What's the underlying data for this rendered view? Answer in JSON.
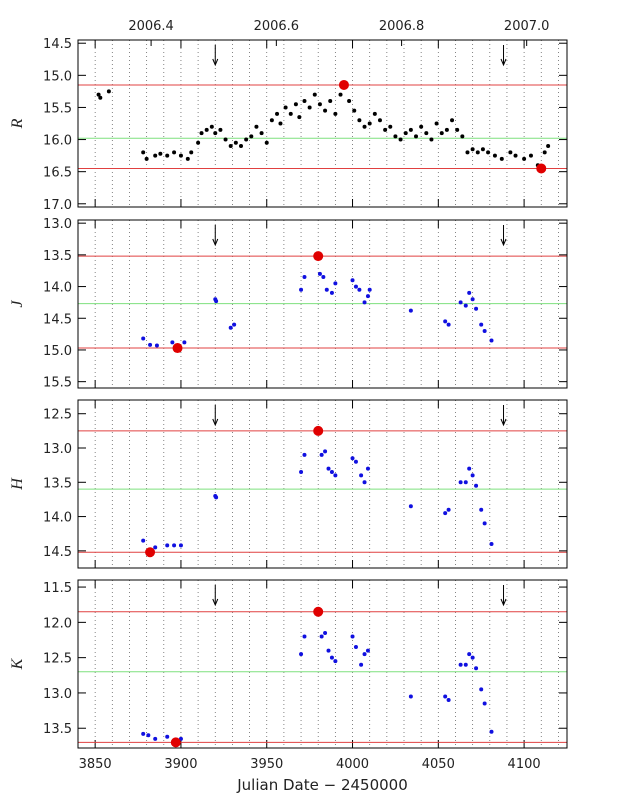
{
  "chart_data": [
    {
      "type": "scatter",
      "ylabel": "R",
      "xlim": [
        3840,
        4125
      ],
      "ylim": [
        14.45,
        17.05
      ],
      "y_inverted": true,
      "x2ticks": [
        {
          "value": 3882.6,
          "label": "2006.4"
        },
        {
          "value": 3955.6,
          "label": "2006.6"
        },
        {
          "value": 4028.6,
          "label": "2006.8"
        },
        {
          "value": 4101.5,
          "label": "2007.0"
        }
      ],
      "yticks": [
        14.5,
        {
          "value": 15,
          "label": "15.0"
        },
        15.5,
        {
          "value": 16,
          "label": "16.0"
        },
        16.5,
        {
          "value": 17,
          "label": "17.0"
        }
      ],
      "arrows_x": [
        3920,
        4088
      ],
      "hlines": [
        {
          "value": 15.15,
          "color": "#e04040"
        },
        {
          "value": 15.98,
          "color": "#7ee07e"
        },
        {
          "value": 16.45,
          "color": "#e04040"
        }
      ],
      "points": {
        "color": "#000000",
        "x": [
          3852,
          3853,
          3858,
          3878,
          3880,
          3885,
          3888,
          3892,
          3896,
          3900,
          3904,
          3906,
          3910,
          3912,
          3915,
          3918,
          3920,
          3923,
          3926,
          3929,
          3932,
          3935,
          3938,
          3941,
          3944,
          3947,
          3950,
          3953,
          3956,
          3958,
          3961,
          3964,
          3967,
          3969,
          3972,
          3975,
          3978,
          3981,
          3984,
          3987,
          3990,
          3993,
          3998,
          4001,
          4004,
          4007,
          4010,
          4013,
          4016,
          4019,
          4022,
          4025,
          4028,
          4031,
          4034,
          4037,
          4040,
          4043,
          4046,
          4049,
          4052,
          4055,
          4058,
          4061,
          4064,
          4067,
          4070,
          4073,
          4076,
          4079,
          4083,
          4087,
          4092,
          4095,
          4100,
          4104,
          4108,
          4112,
          4114
        ],
        "y": [
          15.3,
          15.35,
          15.25,
          16.2,
          16.3,
          16.25,
          16.22,
          16.25,
          16.2,
          16.25,
          16.3,
          16.2,
          16.05,
          15.9,
          15.85,
          15.8,
          15.9,
          15.85,
          16.0,
          16.1,
          16.05,
          16.1,
          16.0,
          15.95,
          15.8,
          15.9,
          16.05,
          15.7,
          15.6,
          15.75,
          15.5,
          15.6,
          15.45,
          15.65,
          15.4,
          15.5,
          15.3,
          15.45,
          15.55,
          15.4,
          15.6,
          15.3,
          15.4,
          15.55,
          15.7,
          15.8,
          15.75,
          15.6,
          15.7,
          15.85,
          15.8,
          15.95,
          16.0,
          15.9,
          15.85,
          15.95,
          15.8,
          15.9,
          16.0,
          15.75,
          15.9,
          15.85,
          15.7,
          15.85,
          15.95,
          16.2,
          16.15,
          16.2,
          16.15,
          16.2,
          16.25,
          16.3,
          16.2,
          16.25,
          16.3,
          16.25,
          16.4,
          16.2,
          16.1
        ]
      },
      "extrema": {
        "color": "#e00000",
        "x": [
          3995,
          4110
        ],
        "y": [
          15.15,
          16.45
        ]
      }
    },
    {
      "type": "scatter",
      "ylabel": "J",
      "xlim": [
        3840,
        4125
      ],
      "ylim": [
        12.95,
        15.6
      ],
      "y_inverted": true,
      "yticks": [
        {
          "value": 13,
          "label": "13.0"
        },
        13.5,
        {
          "value": 14,
          "label": "14.0"
        },
        14.5,
        {
          "value": 15,
          "label": "15.0"
        },
        15.5
      ],
      "arrows_x": [
        3920,
        4088
      ],
      "hlines": [
        {
          "value": 13.52,
          "color": "#e04040"
        },
        {
          "value": 14.27,
          "color": "#7ee07e"
        },
        {
          "value": 14.97,
          "color": "#e04040"
        }
      ],
      "points": {
        "color": "#1010e0",
        "x": [
          3878,
          3882,
          3886,
          3895,
          3902,
          3920,
          3920.5,
          3929,
          3931,
          3970,
          3972,
          3981,
          3983,
          3985,
          3988,
          3990,
          4000,
          4002,
          4004,
          4007,
          4009,
          4010,
          4034,
          4054,
          4056,
          4063,
          4066,
          4068,
          4070,
          4072,
          4075,
          4077,
          4081
        ],
        "y": [
          14.82,
          14.92,
          14.93,
          14.88,
          14.88,
          14.2,
          14.23,
          14.65,
          14.6,
          14.05,
          13.85,
          13.8,
          13.85,
          14.05,
          14.1,
          13.95,
          13.9,
          14.0,
          14.05,
          14.25,
          14.15,
          14.05,
          14.38,
          14.55,
          14.6,
          14.25,
          14.3,
          14.1,
          14.2,
          14.35,
          14.6,
          14.7,
          14.85
        ]
      },
      "extrema": {
        "color": "#e00000",
        "x": [
          3980,
          3898
        ],
        "y": [
          13.52,
          14.97
        ]
      }
    },
    {
      "type": "scatter",
      "ylabel": "H",
      "xlim": [
        3840,
        4125
      ],
      "ylim": [
        12.3,
        14.75
      ],
      "y_inverted": true,
      "yticks": [
        12.5,
        {
          "value": 13,
          "label": "13.0"
        },
        13.5,
        {
          "value": 14,
          "label": "14.0"
        },
        14.5
      ],
      "arrows_x": [
        3920,
        4088
      ],
      "hlines": [
        {
          "value": 12.75,
          "color": "#e04040"
        },
        {
          "value": 13.6,
          "color": "#7ee07e"
        },
        {
          "value": 14.52,
          "color": "#e04040"
        }
      ],
      "points": {
        "color": "#1010e0",
        "x": [
          3878,
          3885,
          3892,
          3896,
          3900,
          3920,
          3920.5,
          3970,
          3972,
          3982,
          3984,
          3986,
          3988,
          3990,
          4000,
          4002,
          4005,
          4007,
          4009,
          4034,
          4054,
          4056,
          4063,
          4066,
          4068,
          4070,
          4072,
          4075,
          4077,
          4081
        ],
        "y": [
          14.35,
          14.45,
          14.42,
          14.42,
          14.42,
          13.7,
          13.72,
          13.35,
          13.1,
          13.1,
          13.05,
          13.3,
          13.35,
          13.4,
          13.15,
          13.2,
          13.4,
          13.5,
          13.3,
          13.85,
          13.95,
          13.9,
          13.5,
          13.5,
          13.3,
          13.4,
          13.55,
          13.9,
          14.1,
          14.4
        ]
      },
      "extrema": {
        "color": "#e00000",
        "x": [
          3980,
          3882
        ],
        "y": [
          12.75,
          14.52
        ]
      }
    },
    {
      "type": "scatter",
      "ylabel": "K",
      "xlim": [
        3840,
        4125
      ],
      "ylim": [
        11.4,
        13.78
      ],
      "y_inverted": true,
      "xlabel": "Julian Date − 2450000",
      "xticks": [
        3850,
        3900,
        3950,
        4000,
        4050,
        4100
      ],
      "xminor": 10,
      "yticks": [
        11.5,
        {
          "value": 12,
          "label": "12.0"
        },
        12.5,
        {
          "value": 13,
          "label": "13.0"
        },
        13.5
      ],
      "arrows_x": [
        3920,
        4088
      ],
      "hlines": [
        {
          "value": 11.85,
          "color": "#e04040"
        },
        {
          "value": 12.7,
          "color": "#7ee07e"
        },
        {
          "value": 13.7,
          "color": "#e04040"
        }
      ],
      "points": {
        "color": "#1010e0",
        "x": [
          3878,
          3881,
          3885,
          3892,
          3900,
          3970,
          3972,
          3982,
          3984,
          3986,
          3988,
          3990,
          4000,
          4002,
          4005,
          4007,
          4009,
          4034,
          4054,
          4056,
          4063,
          4066,
          4068,
          4070,
          4072,
          4075,
          4077,
          4081
        ],
        "y": [
          13.58,
          13.6,
          13.65,
          13.62,
          13.65,
          12.45,
          12.2,
          12.2,
          12.15,
          12.4,
          12.5,
          12.55,
          12.2,
          12.35,
          12.6,
          12.45,
          12.4,
          13.05,
          13.05,
          13.1,
          12.6,
          12.6,
          12.45,
          12.5,
          12.65,
          12.95,
          13.15,
          13.55
        ]
      },
      "extrema": {
        "color": "#e00000",
        "x": [
          3980,
          3897
        ],
        "y": [
          11.85,
          13.7
        ]
      }
    }
  ]
}
